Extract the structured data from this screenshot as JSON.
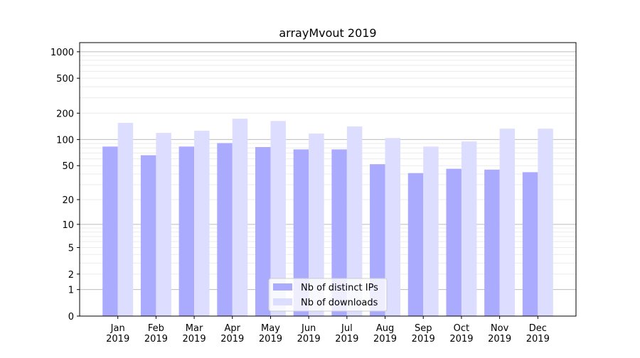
{
  "chart_data": {
    "type": "bar",
    "title": "arrayMvout 2019",
    "xlabel": "",
    "ylabel": "",
    "yscale": "log10(1+y)",
    "ylim": [
      0,
      1270
    ],
    "yticks": [
      0,
      1,
      2,
      5,
      10,
      20,
      50,
      100,
      200,
      500,
      1000
    ],
    "grid": true,
    "legend_position": "lower center",
    "categories": [
      "Jan\n2019",
      "Feb\n2019",
      "Mar\n2019",
      "Apr\n2019",
      "May\n2019",
      "Jun\n2019",
      "Jul\n2019",
      "Aug\n2019",
      "Sep\n2019",
      "Oct\n2019",
      "Nov\n2019",
      "Dec\n2019"
    ],
    "series": [
      {
        "name": "Nb of distinct IPs",
        "color": "#aaaaff",
        "values": [
          83,
          66,
          83,
          91,
          82,
          77,
          77,
          52,
          41,
          46,
          45,
          42
        ]
      },
      {
        "name": "Nb of downloads",
        "color": "#ddddff",
        "values": [
          155,
          119,
          126,
          173,
          163,
          117,
          141,
          104,
          83,
          95,
          133,
          133
        ]
      }
    ]
  }
}
